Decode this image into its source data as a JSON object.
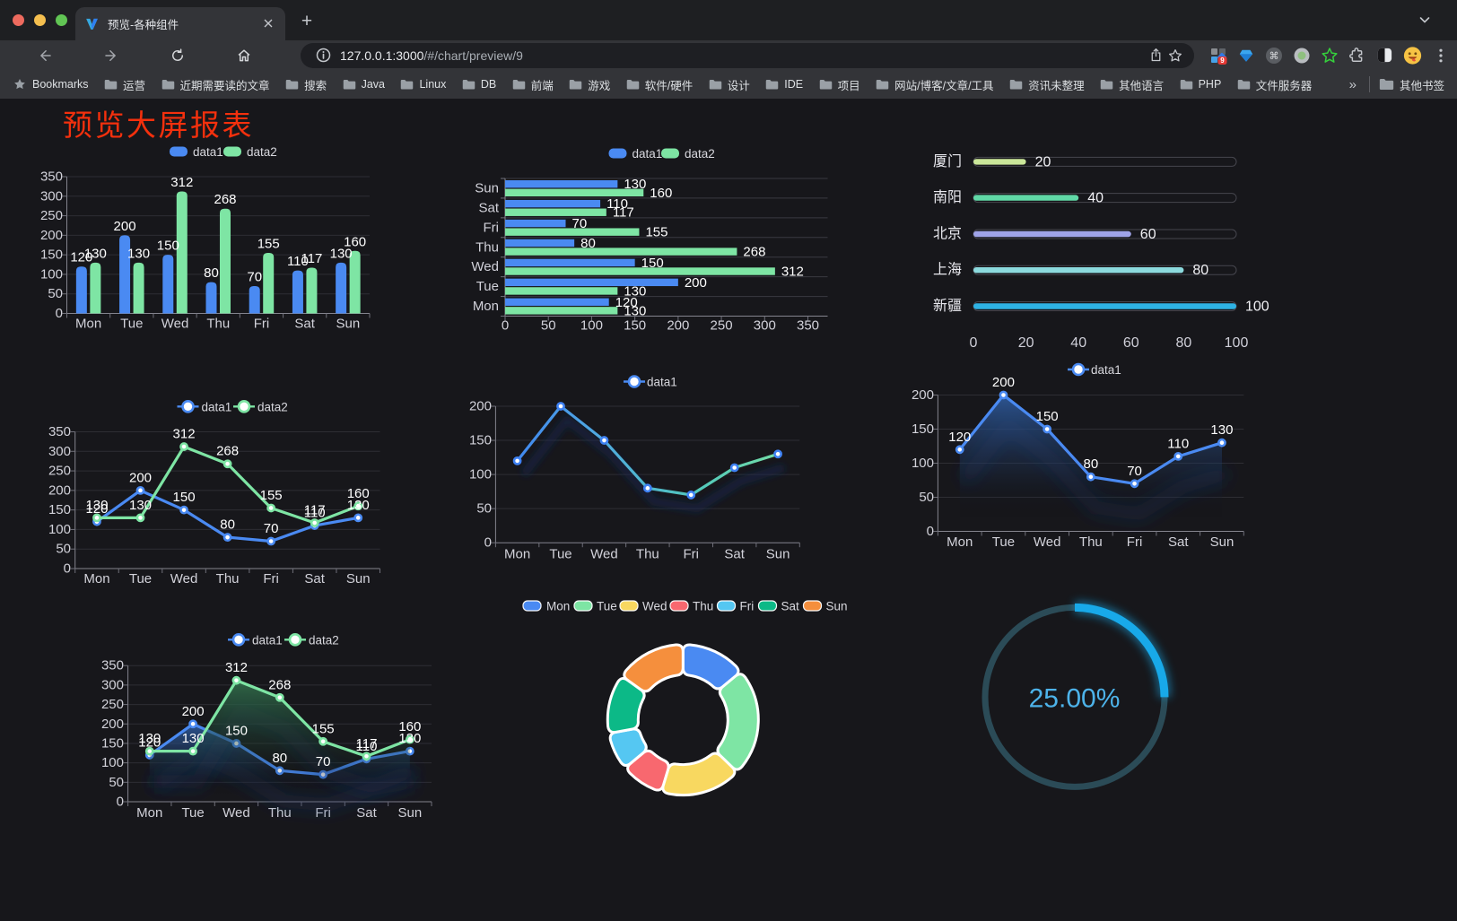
{
  "browser": {
    "traffic_lights": [
      "#ed6a5e",
      "#f5bf4f",
      "#61c554"
    ],
    "tab": {
      "title": "预览-各种组件",
      "close_label": "×"
    },
    "new_tab_label": "+",
    "url": {
      "host": "127.0.0.1:3000",
      "path": "/#/chart/preview/9"
    },
    "bookmarks_label": "Bookmarks",
    "bookmarks": [
      "运营",
      "近期需要读的文章",
      "搜索",
      "Java",
      "Linux",
      "DB",
      "前端",
      "游戏",
      "软件/硬件",
      "设计",
      "IDE",
      "项目",
      "网站/博客/文章/工具",
      "资讯未整理",
      "其他语言",
      "PHP",
      "文件服务器"
    ],
    "bookmarks_overflow": "»",
    "other_bookmarks": "其他书签",
    "extension_badge": "9"
  },
  "page": {
    "title": "预览大屏报表",
    "title_color": "#f4300d",
    "background": "#17171b"
  },
  "chart_data": [
    {
      "type": "bar",
      "categories": [
        "Mon",
        "Tue",
        "Wed",
        "Thu",
        "Fri",
        "Sat",
        "Sun"
      ],
      "series": [
        {
          "name": "data1",
          "color": "#4a8af2",
          "values": [
            120,
            200,
            150,
            80,
            70,
            110,
            130
          ]
        },
        {
          "name": "data2",
          "color": "#7ee5a4",
          "values": [
            130,
            130,
            312,
            268,
            155,
            117,
            160
          ]
        }
      ],
      "ylim": [
        0,
        350
      ],
      "ystep": 50,
      "value_labels": true,
      "legend_position": "top",
      "grid": true
    },
    {
      "type": "hbar",
      "categories": [
        "Mon",
        "Tue",
        "Wed",
        "Thu",
        "Fri",
        "Sat",
        "Sun"
      ],
      "series": [
        {
          "name": "data1",
          "color": "#4a8af2",
          "values": [
            120,
            200,
            150,
            80,
            70,
            110,
            130
          ]
        },
        {
          "name": "data2",
          "color": "#7ee5a4",
          "values": [
            130,
            130,
            312,
            268,
            155,
            117,
            160
          ]
        }
      ],
      "xlim": [
        0,
        350
      ],
      "xstep": 50,
      "value_labels": true,
      "legend_position": "top",
      "grid": true
    },
    {
      "type": "progress",
      "categories": [
        "厦门",
        "南阳",
        "北京",
        "上海",
        "新疆"
      ],
      "values": [
        20,
        40,
        60,
        80,
        100
      ],
      "colors": [
        "#cbe79a",
        "#60d8a6",
        "#9fa3e8",
        "#8cdade",
        "#2eb2e4"
      ],
      "xlim": [
        0,
        100
      ],
      "xstep": 20,
      "value_labels": true
    },
    {
      "type": "line",
      "categories": [
        "Mon",
        "Tue",
        "Wed",
        "Thu",
        "Fri",
        "Sat",
        "Sun"
      ],
      "series": [
        {
          "name": "data1",
          "color": "#4a8af2",
          "values": [
            120,
            200,
            150,
            80,
            70,
            110,
            130
          ]
        },
        {
          "name": "data2",
          "color": "#7ee5a4",
          "values": [
            130,
            130,
            312,
            268,
            155,
            117,
            160
          ]
        }
      ],
      "ylim": [
        0,
        350
      ],
      "ystep": 50,
      "value_labels": true,
      "legend_position": "top",
      "grid": true
    },
    {
      "type": "line",
      "categories": [
        "Mon",
        "Tue",
        "Wed",
        "Thu",
        "Fri",
        "Sat",
        "Sun"
      ],
      "series": [
        {
          "name": "data1",
          "color": "#4a8af2",
          "values": [
            120,
            200,
            150,
            80,
            70,
            110,
            130
          ],
          "gradient": [
            "#3d7ff3",
            "#4fa8e0",
            "#52c8bb",
            "#7ce3a2"
          ],
          "shadow": true,
          "marker_color": "#3f82f4"
        }
      ],
      "ylim": [
        0,
        200
      ],
      "ystep": 50,
      "value_labels": false,
      "legend_position": "top",
      "grid": true
    },
    {
      "type": "line",
      "categories": [
        "Mon",
        "Tue",
        "Wed",
        "Thu",
        "Fri",
        "Sat",
        "Sun"
      ],
      "series": [
        {
          "name": "data1",
          "color": "#4a8af2",
          "values": [
            120,
            200,
            150,
            80,
            70,
            110,
            130
          ],
          "area": "blue",
          "shadow": true
        }
      ],
      "ylim": [
        0,
        200
      ],
      "ystep": 50,
      "value_labels": true,
      "legend_position": "top",
      "grid": true
    },
    {
      "type": "line",
      "categories": [
        "Mon",
        "Tue",
        "Wed",
        "Thu",
        "Fri",
        "Sat",
        "Sun"
      ],
      "series": [
        {
          "name": "data1",
          "color": "#4a8af2",
          "values": [
            120,
            200,
            150,
            80,
            70,
            110,
            130
          ],
          "area": "blue",
          "shadow": true
        },
        {
          "name": "data2",
          "color": "#7ee5a4",
          "values": [
            130,
            130,
            312,
            268,
            155,
            117,
            160
          ],
          "area": "green",
          "shadow": true
        }
      ],
      "ylim": [
        0,
        350
      ],
      "ystep": 50,
      "value_labels": true,
      "legend_position": "top",
      "grid": true
    },
    {
      "type": "pie",
      "categories": [
        "Mon",
        "Tue",
        "Wed",
        "Thu",
        "Fri",
        "Sat",
        "Sun"
      ],
      "values": [
        120,
        200,
        150,
        80,
        70,
        110,
        130
      ],
      "colors": [
        "#4a8af2",
        "#7ee5a4",
        "#f8d860",
        "#f8686f",
        "#55c7f2",
        "#0cb987",
        "#f58f3d"
      ],
      "border_color": "#ffffff",
      "legend_position": "top",
      "inner_radius": "60%"
    },
    {
      "type": "gauge",
      "value": 25,
      "label": "25.00%",
      "track_color": "#2b4b57",
      "bar_color": "#18a9e9",
      "text_color": "#4db3ea"
    }
  ]
}
